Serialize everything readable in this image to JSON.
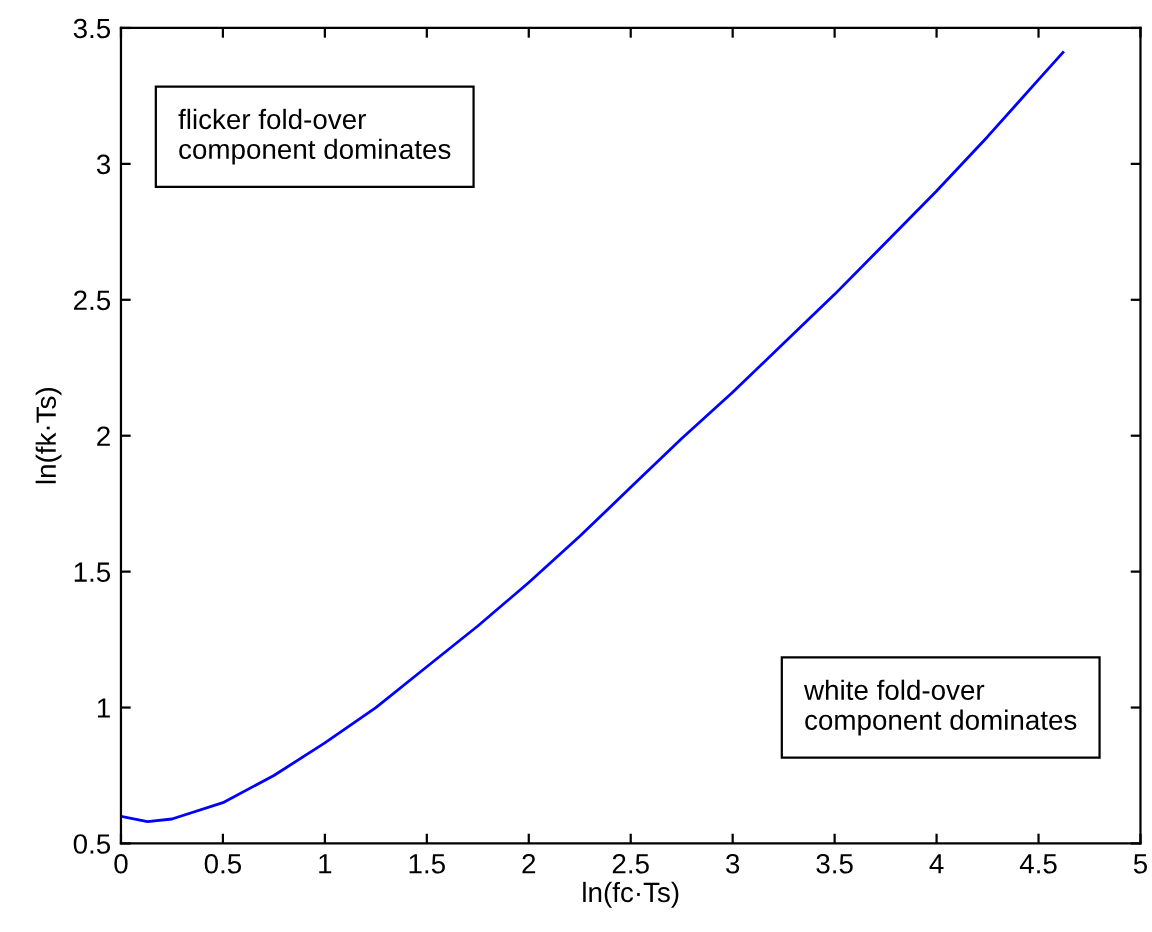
{
  "chart_data": {
    "type": "line",
    "xlabel": "ln(fc·Ts)",
    "ylabel": "ln(fk·Ts)",
    "x": [
      0,
      0.13,
      0.25,
      0.5,
      0.75,
      1,
      1.25,
      1.5,
      1.75,
      2,
      2.25,
      2.5,
      2.75,
      3,
      3.25,
      3.5,
      3.75,
      4,
      4.25,
      4.5,
      4.62
    ],
    "series": [
      {
        "color": "#0000ff",
        "values": [
          0.6,
          0.58,
          0.59,
          0.65,
          0.75,
          0.87,
          1.0,
          1.15,
          1.3,
          1.46,
          1.63,
          1.81,
          1.99,
          2.16,
          2.34,
          2.52,
          2.71,
          2.9,
          3.1,
          3.31,
          3.41
        ]
      }
    ],
    "xlim": [
      0,
      5
    ],
    "xticks": [
      0,
      0.5,
      1,
      1.5,
      2,
      2.5,
      3,
      3.5,
      4,
      4.5,
      5
    ],
    "ylim": [
      0.5,
      3.5
    ],
    "yticks": [
      0.5,
      1,
      1.5,
      2,
      2.5,
      3,
      3.5
    ],
    "grid": false,
    "legend": false,
    "marker": "none",
    "line_style": "solid",
    "annotations": [
      "flicker fold-over\ncomponent dominates",
      "white fold-over\ncomponent dominates"
    ]
  }
}
